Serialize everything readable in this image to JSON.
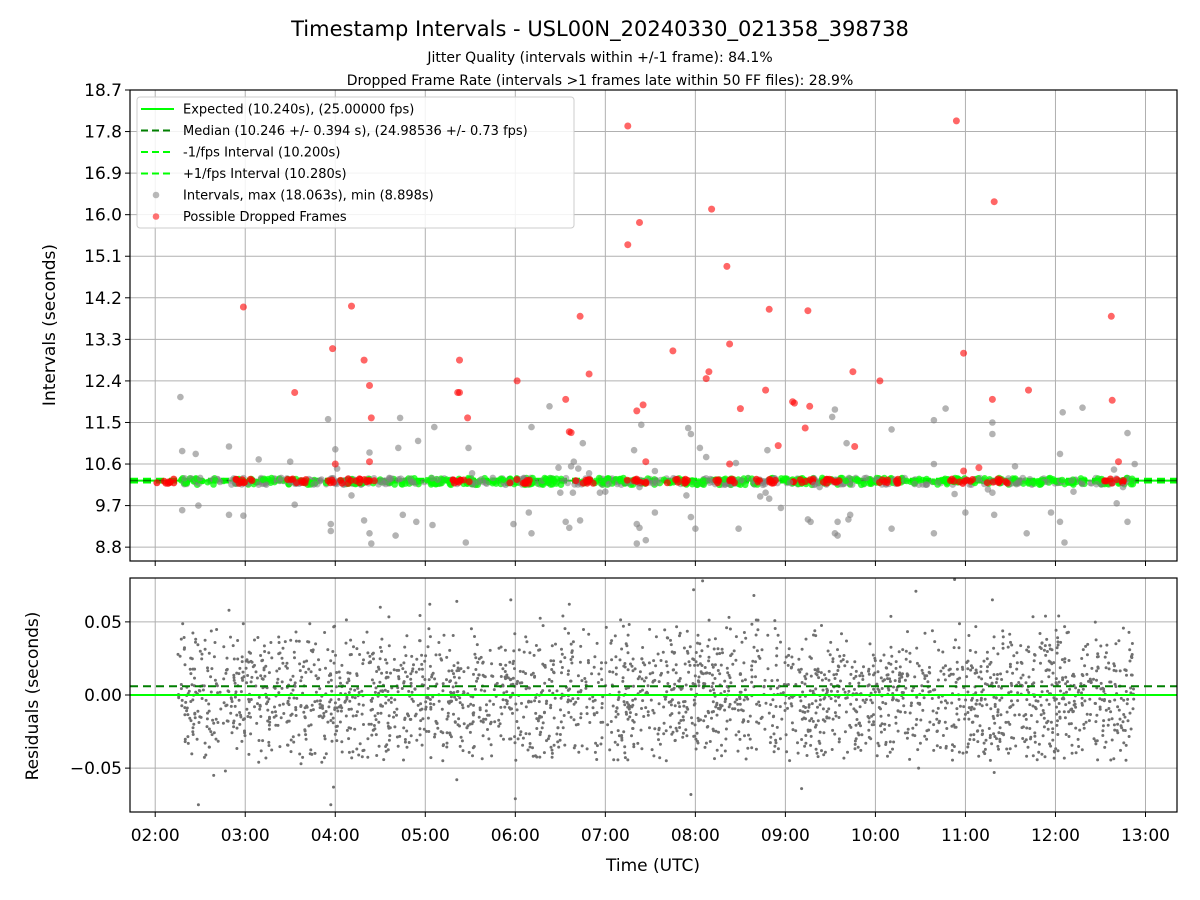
{
  "figure": {
    "title": "Timestamp Intervals - USL00N_20240330_021358_398738",
    "subtitle1": "Jitter Quality (intervals within +/-1 frame): 84.1%",
    "subtitle2": "Dropped Frame Rate (intervals >1 frames late within 50 FF files): 28.9%"
  },
  "chart_data": [
    {
      "type": "scatter",
      "ylabel": "Intervals (seconds)",
      "xlabel": "",
      "ylim": [
        8.5,
        18.7
      ],
      "yticks": [
        "8.8",
        "9.7",
        "10.6",
        "11.5",
        "12.4",
        "13.3",
        "14.2",
        "15.1",
        "16.0",
        "16.9",
        "17.8",
        "18.7"
      ],
      "ytick_values": [
        8.8,
        9.7,
        10.6,
        11.5,
        12.4,
        13.3,
        14.2,
        15.1,
        16.0,
        16.9,
        17.8,
        18.7
      ],
      "xlim": [
        1.72,
        13.35
      ],
      "grid": true,
      "legend_position": "top-left",
      "legend": [
        {
          "label": "Expected (10.240s), (25.00000 fps)",
          "style": "solid",
          "color": "#00ff00"
        },
        {
          "label": "Median (10.246 +/- 0.394 s), (24.98536 +/- 0.73 fps)",
          "style": "dashed",
          "color": "#007f00"
        },
        {
          "label": "-1/fps Interval (10.200s)",
          "style": "dashed",
          "color": "#00ff00"
        },
        {
          "label": "+1/fps Interval (10.280s)",
          "style": "dashed",
          "color": "#00ff00"
        },
        {
          "label": "Intervals, max (18.063s), min (8.898s)",
          "style": "marker",
          "color": "#808080"
        },
        {
          "label": "Possible Dropped Frames",
          "style": "marker",
          "color": "#ff0000"
        }
      ],
      "reference_lines": {
        "expected": 10.24,
        "median": 10.246,
        "minus_one_fps": 10.2,
        "plus_one_fps": 10.28
      },
      "interval_band": {
        "x_start": 2.25,
        "x_end": 12.87,
        "y_min": 10.15,
        "y_max": 10.3
      },
      "dropped_clusters_x": [
        2.1,
        2.95,
        3.55,
        4.05,
        4.35,
        5.4,
        6.05,
        6.75,
        7.35,
        7.8,
        8.35,
        8.8,
        9.2,
        9.55,
        10.15,
        10.95,
        11.35,
        12.65
      ],
      "grey_outliers": [
        [
          2.28,
          12.05
        ],
        [
          2.3,
          10.88
        ],
        [
          2.3,
          9.6
        ],
        [
          2.45,
          10.82
        ],
        [
          2.48,
          9.7
        ],
        [
          2.82,
          10.98
        ],
        [
          2.82,
          9.5
        ],
        [
          2.98,
          9.48
        ],
        [
          3.15,
          10.7
        ],
        [
          3.5,
          10.65
        ],
        [
          3.55,
          9.72
        ],
        [
          3.92,
          11.57
        ],
        [
          3.95,
          9.15
        ],
        [
          3.95,
          9.3
        ],
        [
          4.0,
          10.92
        ],
        [
          4.02,
          10.5
        ],
        [
          4.18,
          9.92
        ],
        [
          4.32,
          9.38
        ],
        [
          4.38,
          9.1
        ],
        [
          4.4,
          8.88
        ],
        [
          4.38,
          10.85
        ],
        [
          4.67,
          9.05
        ],
        [
          4.7,
          10.95
        ],
        [
          4.72,
          11.6
        ],
        [
          4.75,
          9.5
        ],
        [
          4.9,
          9.35
        ],
        [
          4.92,
          11.1
        ],
        [
          5.08,
          9.28
        ],
        [
          5.1,
          11.4
        ],
        [
          5.45,
          8.9
        ],
        [
          5.48,
          10.95
        ],
        [
          5.52,
          10.4
        ],
        [
          5.98,
          9.3
        ],
        [
          6.15,
          9.55
        ],
        [
          6.18,
          9.1
        ],
        [
          6.18,
          11.4
        ],
        [
          6.38,
          11.85
        ],
        [
          6.48,
          10.52
        ],
        [
          6.5,
          9.98
        ],
        [
          6.56,
          9.35
        ],
        [
          6.6,
          9.22
        ],
        [
          6.62,
          10.55
        ],
        [
          6.64,
          9.98
        ],
        [
          6.65,
          10.65
        ],
        [
          6.7,
          10.5
        ],
        [
          6.72,
          9.38
        ],
        [
          6.75,
          11.05
        ],
        [
          6.82,
          10.4
        ],
        [
          6.94,
          9.98
        ],
        [
          7.0,
          10.0
        ],
        [
          7.32,
          10.9
        ],
        [
          7.35,
          9.3
        ],
        [
          7.35,
          8.88
        ],
        [
          7.38,
          10.1
        ],
        [
          7.4,
          11.45
        ],
        [
          7.38,
          9.22
        ],
        [
          7.45,
          8.95
        ],
        [
          7.55,
          9.55
        ],
        [
          7.55,
          10.45
        ],
        [
          7.9,
          9.92
        ],
        [
          7.92,
          11.38
        ],
        [
          7.95,
          11.25
        ],
        [
          7.95,
          9.45
        ],
        [
          8.0,
          9.2
        ],
        [
          8.05,
          10.95
        ],
        [
          8.12,
          10.75
        ],
        [
          8.45,
          10.62
        ],
        [
          8.48,
          9.2
        ],
        [
          8.72,
          9.9
        ],
        [
          8.75,
          10.15
        ],
        [
          8.78,
          9.98
        ],
        [
          8.8,
          10.9
        ],
        [
          8.82,
          9.85
        ],
        [
          8.95,
          9.65
        ],
        [
          9.05,
          10.2
        ],
        [
          9.25,
          9.4
        ],
        [
          9.28,
          9.35
        ],
        [
          9.32,
          10.15
        ],
        [
          9.38,
          10.1
        ],
        [
          9.52,
          11.62
        ],
        [
          9.55,
          9.1
        ],
        [
          9.55,
          11.78
        ],
        [
          9.58,
          9.05
        ],
        [
          9.58,
          9.35
        ],
        [
          9.68,
          11.05
        ],
        [
          9.72,
          9.5
        ],
        [
          9.7,
          9.4
        ],
        [
          10.18,
          11.35
        ],
        [
          10.18,
          9.2
        ],
        [
          10.65,
          9.1
        ],
        [
          10.65,
          10.6
        ],
        [
          10.65,
          11.55
        ],
        [
          10.78,
          11.8
        ],
        [
          10.88,
          9.95
        ],
        [
          11.0,
          9.55
        ],
        [
          11.25,
          10.05
        ],
        [
          11.3,
          11.25
        ],
        [
          11.3,
          11.5
        ],
        [
          11.3,
          9.98
        ],
        [
          11.32,
          9.5
        ],
        [
          11.55,
          10.55
        ],
        [
          11.68,
          9.1
        ],
        [
          11.95,
          9.55
        ],
        [
          12.05,
          10.82
        ],
        [
          12.08,
          11.72
        ],
        [
          12.1,
          8.9
        ],
        [
          12.05,
          9.35
        ],
        [
          12.2,
          10.0
        ],
        [
          12.3,
          11.82
        ],
        [
          12.75,
          10.1
        ],
        [
          12.8,
          9.35
        ],
        [
          12.8,
          11.27
        ],
        [
          12.88,
          10.6
        ],
        [
          12.65,
          10.48
        ],
        [
          12.68,
          9.75
        ],
        [
          2.5,
          10.3
        ],
        [
          3.4,
          10.3
        ],
        [
          4.6,
          10.3
        ],
        [
          5.75,
          10.3
        ],
        [
          9.9,
          10.3
        ]
      ],
      "red_outliers": [
        [
          2.98,
          14.0
        ],
        [
          3.55,
          12.15
        ],
        [
          3.97,
          13.1
        ],
        [
          4.0,
          10.6
        ],
        [
          4.18,
          14.02
        ],
        [
          4.32,
          12.85
        ],
        [
          4.38,
          12.3
        ],
        [
          4.4,
          11.6
        ],
        [
          4.38,
          10.65
        ],
        [
          5.38,
          12.85
        ],
        [
          5.36,
          12.15
        ],
        [
          5.38,
          12.15
        ],
        [
          5.47,
          11.6
        ],
        [
          6.02,
          12.4
        ],
        [
          6.6,
          11.3
        ],
        [
          6.62,
          11.28
        ],
        [
          6.56,
          12.0
        ],
        [
          6.72,
          13.8
        ],
        [
          6.82,
          12.55
        ],
        [
          7.25,
          17.92
        ],
        [
          7.25,
          15.35
        ],
        [
          7.38,
          15.83
        ],
        [
          7.35,
          11.75
        ],
        [
          7.42,
          11.88
        ],
        [
          7.45,
          10.65
        ],
        [
          7.75,
          13.05
        ],
        [
          8.12,
          12.45
        ],
        [
          8.15,
          12.6
        ],
        [
          8.18,
          16.12
        ],
        [
          8.35,
          14.88
        ],
        [
          8.38,
          13.2
        ],
        [
          8.38,
          10.6
        ],
        [
          8.5,
          11.8
        ],
        [
          8.78,
          12.2
        ],
        [
          8.82,
          13.95
        ],
        [
          8.92,
          11.0
        ],
        [
          9.08,
          11.95
        ],
        [
          9.1,
          11.92
        ],
        [
          9.22,
          11.38
        ],
        [
          9.25,
          13.92
        ],
        [
          9.27,
          11.85
        ],
        [
          9.75,
          12.6
        ],
        [
          9.77,
          10.98
        ],
        [
          10.05,
          12.4
        ],
        [
          10.9,
          18.03
        ],
        [
          10.98,
          13.0
        ],
        [
          10.98,
          10.45
        ],
        [
          11.3,
          12.0
        ],
        [
          11.32,
          16.28
        ],
        [
          11.7,
          12.2
        ],
        [
          12.62,
          13.8
        ],
        [
          12.63,
          11.98
        ],
        [
          12.7,
          10.65
        ],
        [
          11.15,
          10.52
        ]
      ]
    },
    {
      "type": "scatter",
      "ylabel": "Residuals (seconds)",
      "xlabel": "Time (UTC)",
      "ylim": [
        -0.08,
        0.08
      ],
      "yticks": [
        "0.05",
        "0.00",
        "−0.05"
      ],
      "ytick_values": [
        0.05,
        0.0,
        -0.05
      ],
      "xlim": [
        1.72,
        13.35
      ],
      "xticks": [
        "02:00",
        "03:00",
        "04:00",
        "05:00",
        "06:00",
        "07:00",
        "08:00",
        "09:00",
        "10:00",
        "11:00",
        "12:00",
        "13:00"
      ],
      "xtick_values": [
        2,
        3,
        4,
        5,
        6,
        7,
        8,
        9,
        10,
        11,
        12,
        13
      ],
      "grid": true,
      "reference_lines": {
        "expected": 0.0,
        "median": 0.006
      },
      "residual_range": {
        "x_start": 2.25,
        "x_end": 12.87,
        "y_min": -0.045,
        "y_max": 0.055
      },
      "residual_outliers": [
        [
          2.48,
          -0.075
        ],
        [
          2.65,
          -0.055
        ],
        [
          2.78,
          -0.052
        ],
        [
          2.82,
          0.058
        ],
        [
          3.15,
          -0.046
        ],
        [
          3.62,
          -0.047
        ],
        [
          3.85,
          -0.046
        ],
        [
          3.95,
          -0.075
        ],
        [
          3.98,
          -0.063
        ],
        [
          4.5,
          0.06
        ],
        [
          5.05,
          0.062
        ],
        [
          5.35,
          0.064
        ],
        [
          5.35,
          -0.058
        ],
        [
          5.95,
          0.065
        ],
        [
          6.0,
          -0.071
        ],
        [
          6.6,
          0.062
        ],
        [
          7.95,
          -0.068
        ],
        [
          7.98,
          0.072
        ],
        [
          8.08,
          0.078
        ],
        [
          8.65,
          0.068
        ],
        [
          9.18,
          -0.064
        ],
        [
          10.45,
          0.071
        ],
        [
          10.48,
          -0.05
        ],
        [
          10.88,
          0.079
        ],
        [
          11.3,
          0.065
        ],
        [
          11.32,
          -0.053
        ]
      ]
    }
  ],
  "colors": {
    "grey": "#808080",
    "red": "#ff0000",
    "green": "#00ff00",
    "darkgreen": "#007f00",
    "grid": "#b0b0b0"
  }
}
